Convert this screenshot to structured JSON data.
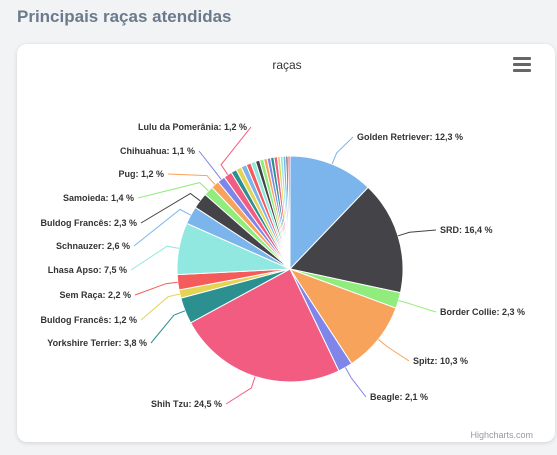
{
  "page": {
    "heading": "Principais raças atendidas"
  },
  "chart": {
    "menu_icon": "hamburger-menu-icon",
    "credits": "Highcharts.com"
  },
  "chart_data": {
    "type": "pie",
    "title": "raças",
    "unit": "%",
    "slices": [
      {
        "name": "Golden Retriever",
        "value": 12.3,
        "color": "#7cb5ec"
      },
      {
        "name": "SRD",
        "value": 16.4,
        "color": "#434348"
      },
      {
        "name": "Border Collie",
        "value": 2.3,
        "color": "#90ed7d"
      },
      {
        "name": "Spitz",
        "value": 10.3,
        "color": "#f7a35c"
      },
      {
        "name": "Beagle",
        "value": 2.1,
        "color": "#8085e9"
      },
      {
        "name": "Shih Tzu",
        "value": 24.5,
        "color": "#f15c80"
      },
      {
        "name": "Yorkshire Terrier",
        "value": 3.8,
        "color": "#2b908f"
      },
      {
        "name": "Buldog Francês",
        "value": 1.2,
        "color": "#e4d354"
      },
      {
        "name": "Sem Raça",
        "value": 2.2,
        "color": "#f45b5b"
      },
      {
        "name": "Lhasa Apso",
        "value": 7.5,
        "color": "#91e8e1"
      },
      {
        "name": "Schnauzer",
        "value": 2.6,
        "color": "#7cb5ec"
      },
      {
        "name": "Buldog Francês",
        "value": 2.3,
        "color": "#434348"
      },
      {
        "name": "Samoieda",
        "value": 1.4,
        "color": "#90ed7d"
      },
      {
        "name": "Pug",
        "value": 1.2,
        "color": "#f7a35c"
      },
      {
        "name": "Chihuahua",
        "value": 1.1,
        "color": "#8085e9"
      },
      {
        "name": "Lulu da Pomerânia",
        "value": 1.2,
        "color": "#f15c80"
      },
      {
        "name": "",
        "value": 0.8,
        "color": "#2b908f"
      },
      {
        "name": "",
        "value": 0.8,
        "color": "#e4d354"
      },
      {
        "name": "",
        "value": 0.8,
        "color": "#7cb5ec"
      },
      {
        "name": "",
        "value": 0.7,
        "color": "#f45b5b"
      },
      {
        "name": "",
        "value": 0.7,
        "color": "#91e8e1"
      },
      {
        "name": "",
        "value": 0.6,
        "color": "#434348"
      },
      {
        "name": "",
        "value": 0.6,
        "color": "#90ed7d"
      },
      {
        "name": "",
        "value": 0.5,
        "color": "#f7a35c"
      },
      {
        "name": "",
        "value": 0.5,
        "color": "#8085e9"
      },
      {
        "name": "",
        "value": 0.5,
        "color": "#2b908f"
      },
      {
        "name": "",
        "value": 0.5,
        "color": "#f15c80"
      },
      {
        "name": "",
        "value": 0.4,
        "color": "#e4d354"
      },
      {
        "name": "",
        "value": 0.4,
        "color": "#91e8e1"
      },
      {
        "name": "",
        "value": 0.4,
        "color": "#7cb5ec"
      },
      {
        "name": "",
        "value": 0.3,
        "color": "#434348"
      },
      {
        "name": "",
        "value": 0.3,
        "color": "#f45b5b"
      }
    ]
  }
}
